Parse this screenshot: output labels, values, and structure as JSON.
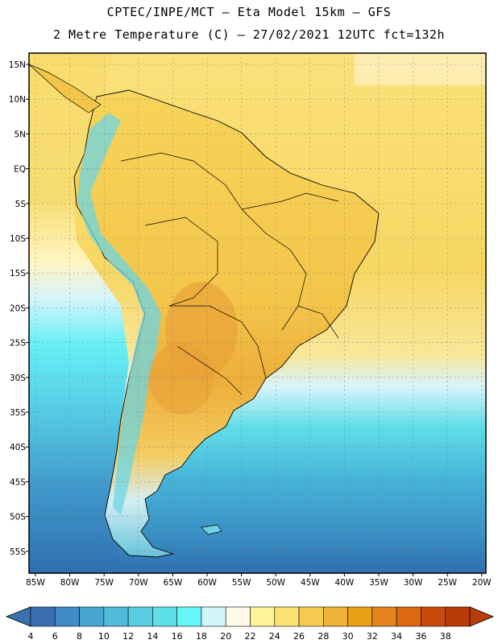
{
  "header": {
    "line1": "CPTEC/INPE/MCT –  Eta Model 15km – GFS",
    "line2": "2 Metre Temperature (C) – 27/02/2021 12UTC fct=132h"
  },
  "map": {
    "lat_labels": [
      "15N",
      "10N",
      "5N",
      "EQ",
      "5S",
      "10S",
      "15S",
      "20S",
      "25S",
      "30S",
      "35S",
      "40S",
      "45S",
      "50S",
      "55S"
    ],
    "lon_labels": [
      "85W",
      "80W",
      "75W",
      "70W",
      "65W",
      "60W",
      "55W",
      "50W",
      "45W",
      "40W",
      "35W",
      "30W",
      "25W",
      "20W"
    ],
    "ocean_colors": {
      "warm": "#f9df63",
      "cool": "#d8f4fb",
      "cold": "#2f8fbf"
    }
  },
  "colorbar": {
    "labels": [
      "4",
      "6",
      "8",
      "10",
      "12",
      "14",
      "16",
      "18",
      "20",
      "22",
      "24",
      "26",
      "28",
      "30",
      "32",
      "34",
      "36",
      "38"
    ],
    "colors": [
      "#3a6fb0",
      "#3f8cc6",
      "#47a6d2",
      "#51bad9",
      "#59cde0",
      "#5fe0e8",
      "#66f5f8",
      "#d2f4fb",
      "#fffbe6",
      "#fff39a",
      "#fae170",
      "#f5cb4f",
      "#efb437",
      "#eba116",
      "#e58421",
      "#dd6a13",
      "#c94a0d",
      "#b83b0a"
    ]
  }
}
